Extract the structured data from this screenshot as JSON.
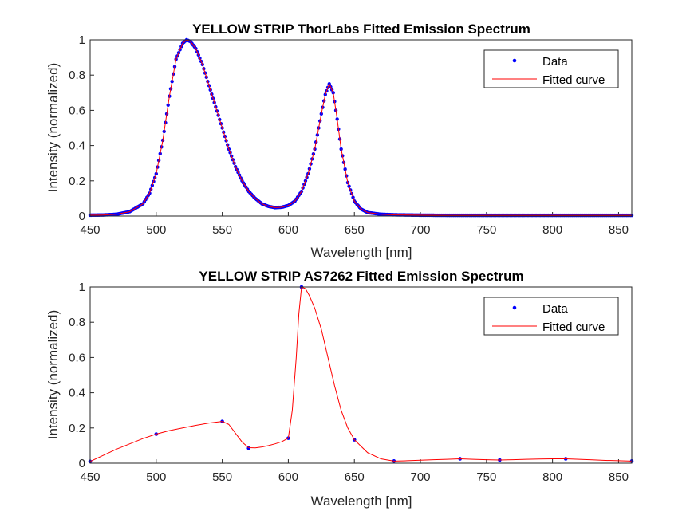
{
  "colors": {
    "data": "#0000ff",
    "fit": "#ff0000",
    "axes": "#262626"
  },
  "chart_data": [
    {
      "type": "line",
      "title": "YELLOW STRIP ThorLabs Fitted Emission Spectrum",
      "xlabel": "Wavelength [nm]",
      "ylabel": "Intensity (normalized)",
      "xlim": [
        450,
        860
      ],
      "ylim": [
        0,
        1
      ],
      "xticks": [
        450,
        500,
        550,
        600,
        650,
        700,
        750,
        800,
        850
      ],
      "yticks": [
        0,
        0.2,
        0.4,
        0.6,
        0.8,
        1
      ],
      "ytick_labels": [
        "0",
        "0.2",
        "0.4",
        "0.6",
        "0.8",
        "1"
      ],
      "grid": false,
      "legend": {
        "placement": "top-right",
        "entries": [
          "Data",
          "Fitted curve"
        ]
      },
      "series": [
        {
          "name": "Data",
          "style": "markers",
          "x": [
            450,
            460,
            470,
            480,
            490,
            495,
            500,
            505,
            510,
            515,
            520,
            523,
            526,
            530,
            535,
            540,
            545,
            550,
            555,
            560,
            565,
            570,
            575,
            580,
            585,
            590,
            595,
            600,
            605,
            610,
            615,
            620,
            625,
            628,
            631,
            634,
            637,
            640,
            645,
            650,
            655,
            660,
            670,
            680,
            700,
            720,
            750,
            780,
            800,
            830,
            860
          ],
          "y": [
            0.005,
            0.006,
            0.01,
            0.025,
            0.07,
            0.13,
            0.24,
            0.43,
            0.68,
            0.89,
            0.98,
            1.0,
            0.99,
            0.95,
            0.86,
            0.74,
            0.62,
            0.5,
            0.38,
            0.28,
            0.2,
            0.14,
            0.1,
            0.07,
            0.055,
            0.048,
            0.05,
            0.06,
            0.085,
            0.14,
            0.24,
            0.38,
            0.58,
            0.69,
            0.75,
            0.7,
            0.55,
            0.38,
            0.19,
            0.085,
            0.04,
            0.02,
            0.01,
            0.007,
            0.005,
            0.004,
            0.004,
            0.004,
            0.004,
            0.004,
            0.004
          ]
        },
        {
          "name": "Fitted curve",
          "style": "line",
          "x": [
            450,
            460,
            470,
            480,
            490,
            495,
            500,
            505,
            510,
            515,
            520,
            523,
            526,
            530,
            535,
            540,
            545,
            550,
            555,
            560,
            565,
            570,
            575,
            580,
            585,
            590,
            595,
            600,
            605,
            610,
            615,
            620,
            625,
            628,
            631,
            634,
            637,
            640,
            645,
            650,
            655,
            660,
            670,
            680,
            700,
            720,
            750,
            780,
            800,
            830,
            860
          ],
          "y": [
            0.005,
            0.006,
            0.01,
            0.025,
            0.07,
            0.13,
            0.24,
            0.43,
            0.68,
            0.89,
            0.98,
            1.0,
            0.99,
            0.95,
            0.86,
            0.74,
            0.62,
            0.5,
            0.38,
            0.28,
            0.2,
            0.14,
            0.1,
            0.07,
            0.055,
            0.048,
            0.05,
            0.06,
            0.085,
            0.14,
            0.24,
            0.38,
            0.58,
            0.69,
            0.75,
            0.7,
            0.55,
            0.38,
            0.19,
            0.085,
            0.04,
            0.02,
            0.01,
            0.007,
            0.005,
            0.004,
            0.004,
            0.004,
            0.004,
            0.004,
            0.004
          ]
        }
      ]
    },
    {
      "type": "line",
      "title": "YELLOW STRIP AS7262 Fitted Emission Spectrum",
      "xlabel": "Wavelength [nm]",
      "ylabel": "Intensity (normalized)",
      "xlim": [
        450,
        860
      ],
      "ylim": [
        0,
        1
      ],
      "xticks": [
        450,
        500,
        550,
        600,
        650,
        700,
        750,
        800,
        850
      ],
      "yticks": [
        0,
        0.2,
        0.4,
        0.6,
        0.8,
        1
      ],
      "ytick_labels": [
        "0",
        "0.2",
        "0.4",
        "0.6",
        "0.8",
        "1"
      ],
      "grid": false,
      "legend": {
        "placement": "top-right",
        "entries": [
          "Data",
          "Fitted curve"
        ]
      },
      "series": [
        {
          "name": "Data",
          "style": "markers",
          "x": [
            450,
            500,
            550,
            570,
            600,
            610,
            650,
            680,
            730,
            760,
            810,
            860
          ],
          "y": [
            0.01,
            0.165,
            0.237,
            0.085,
            0.142,
            1.0,
            0.133,
            0.012,
            0.025,
            0.018,
            0.025,
            0.012
          ]
        },
        {
          "name": "Fitted curve",
          "style": "line",
          "x": [
            450,
            460,
            470,
            480,
            490,
            500,
            510,
            520,
            530,
            540,
            550,
            555,
            560,
            565,
            570,
            575,
            580,
            585,
            590,
            595,
            600,
            603,
            606,
            608,
            610,
            613,
            616,
            620,
            625,
            630,
            635,
            640,
            645,
            650,
            660,
            670,
            680,
            690,
            700,
            710,
            720,
            730,
            740,
            750,
            760,
            770,
            780,
            790,
            800,
            810,
            820,
            830,
            840,
            850,
            860
          ],
          "y": [
            0.01,
            0.045,
            0.08,
            0.11,
            0.14,
            0.165,
            0.185,
            0.2,
            0.215,
            0.228,
            0.237,
            0.22,
            0.17,
            0.12,
            0.088,
            0.087,
            0.092,
            0.1,
            0.11,
            0.122,
            0.142,
            0.3,
            0.6,
            0.85,
            1.0,
            0.99,
            0.95,
            0.88,
            0.76,
            0.6,
            0.44,
            0.3,
            0.2,
            0.133,
            0.06,
            0.025,
            0.012,
            0.014,
            0.017,
            0.02,
            0.022,
            0.025,
            0.022,
            0.02,
            0.018,
            0.02,
            0.022,
            0.024,
            0.025,
            0.025,
            0.022,
            0.019,
            0.016,
            0.014,
            0.012
          ]
        }
      ]
    }
  ]
}
